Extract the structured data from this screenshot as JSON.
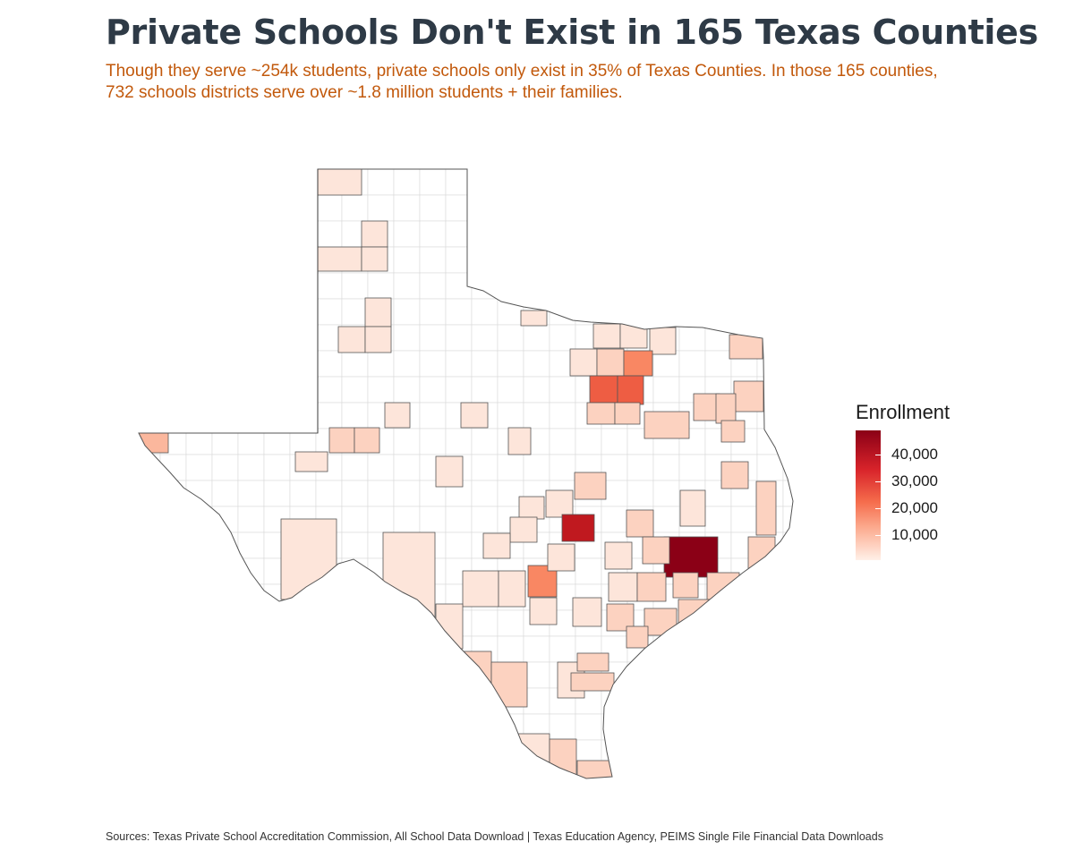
{
  "title": "Private Schools Don't Exist in 165 Texas Counties",
  "subtitle": "Though they serve ~254k students, private schools only exist in 35% of Texas Counties. In those 165 counties, 732 schools districts serve over ~1.8 million students + their families.",
  "legend": {
    "title": "Enrollment",
    "ticks": [
      "40,000",
      "30,000",
      "20,000",
      "10,000"
    ],
    "tick_values": [
      40000,
      30000,
      20000,
      10000
    ],
    "range": [
      0,
      47000
    ],
    "colors": [
      "#fff0e8",
      "#fcab8f",
      "#f56c4c",
      "#d8232a",
      "#8a0016"
    ]
  },
  "source": "Sources: Texas Private School Accreditation Commission, All School Data Download | Texas Education Agency, PEIMS Single File Financial Data Downloads",
  "map_colors": {
    "no_school": "#ffffff",
    "very_light": "#fde5da",
    "light": "#fcd2c0",
    "medium": "#fbb79d",
    "orange": "#f98763",
    "red": "#ee5d43",
    "dark_red": "#c0191f",
    "darkest": "#8b0016",
    "border_outer": "#555555",
    "border_inner": "#d9d9d9"
  }
}
